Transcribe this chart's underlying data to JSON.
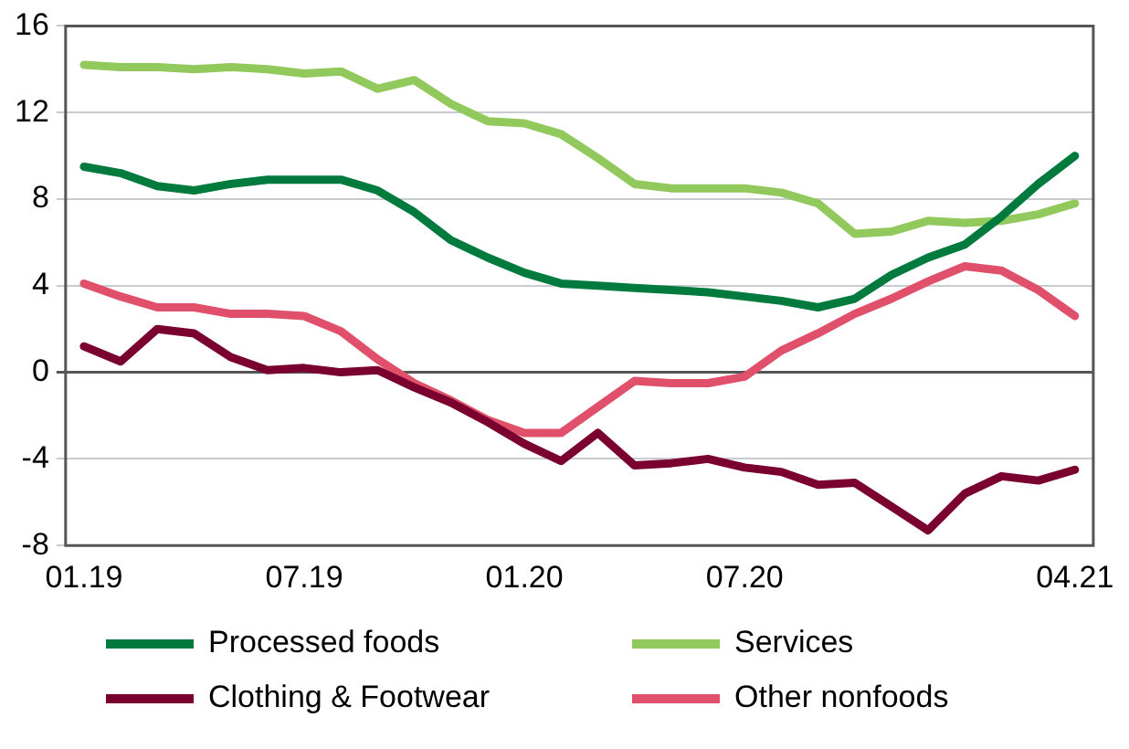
{
  "chart_data": {
    "type": "line",
    "categories": [
      "01.19",
      null,
      null,
      null,
      null,
      null,
      "07.19",
      null,
      null,
      null,
      null,
      null,
      "01.20",
      null,
      null,
      null,
      null,
      null,
      "07.20",
      null,
      null,
      null,
      null,
      null,
      null,
      null,
      null,
      "04.21"
    ],
    "series": [
      {
        "name": "Processed foods",
        "color": "#007a3d",
        "values": [
          9.5,
          9.2,
          8.6,
          8.4,
          8.7,
          8.9,
          8.9,
          8.9,
          8.4,
          7.4,
          6.1,
          5.3,
          4.6,
          4.1,
          4.0,
          3.9,
          3.8,
          3.7,
          3.5,
          3.3,
          3.0,
          3.4,
          4.5,
          5.3,
          5.9,
          7.2,
          8.7,
          10.0
        ]
      },
      {
        "name": "Services",
        "color": "#92c95c",
        "values": [
          14.2,
          14.1,
          14.1,
          14.0,
          14.1,
          14.0,
          13.8,
          13.9,
          13.1,
          13.5,
          12.4,
          11.6,
          11.5,
          11.0,
          9.9,
          8.7,
          8.5,
          8.5,
          8.5,
          8.3,
          7.8,
          6.4,
          6.5,
          7.0,
          6.9,
          7.0,
          7.3,
          7.8
        ]
      },
      {
        "name": "Clothing & Footwear",
        "color": "#7a0030",
        "values": [
          1.2,
          0.5,
          2.0,
          1.8,
          0.7,
          0.1,
          0.2,
          0.0,
          0.1,
          -0.7,
          -1.4,
          -2.3,
          -3.3,
          -4.1,
          -2.8,
          -4.3,
          -4.2,
          -4.0,
          -4.4,
          -4.6,
          -5.2,
          -5.1,
          -6.2,
          -7.3,
          -5.6,
          -4.8,
          -5.0,
          -4.5
        ]
      },
      {
        "name": "Other nonfoods",
        "color": "#e0506a",
        "values": [
          4.1,
          3.5,
          3.0,
          3.0,
          2.7,
          2.7,
          2.6,
          1.9,
          0.6,
          -0.5,
          -1.3,
          -2.2,
          -2.8,
          -2.8,
          -1.6,
          -0.4,
          -0.5,
          -0.5,
          -0.2,
          1.0,
          1.8,
          2.7,
          3.4,
          4.2,
          4.9,
          4.7,
          3.8,
          2.6
        ]
      }
    ],
    "ylim": [
      -8,
      16
    ],
    "yticks": [
      -8,
      -4,
      0,
      4,
      8,
      12,
      16
    ],
    "grid": "y",
    "legend": "bottom",
    "marker": "none",
    "line_style": "solid"
  }
}
